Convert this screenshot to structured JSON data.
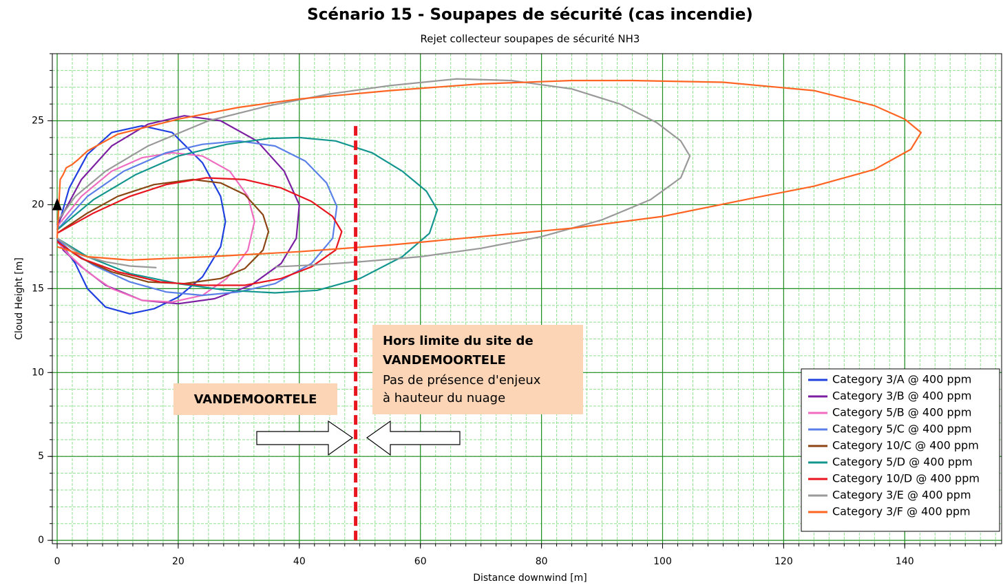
{
  "chart_data": {
    "type": "line",
    "title": "Scénario 15 - Soupapes de sécurité (cas incendie)",
    "subtitle": "Rejet collecteur soupapes de sécurité NH3",
    "x_label": "Distance downwind [m]",
    "y_label": "Cloud Height [m]",
    "xlim": [
      -0.8,
      156
    ],
    "ylim": [
      -0.2,
      29
    ],
    "xticks": [
      0,
      20,
      40,
      60,
      80,
      100,
      120,
      140
    ],
    "yticks": [
      0,
      5,
      10,
      15,
      20,
      25
    ],
    "grid": true,
    "minor_grid": {
      "x": 2.5,
      "y": 1
    },
    "legend": "lower right",
    "source": {
      "x": 0,
      "y": 20
    },
    "site_limit": {
      "x": 49.3,
      "ylim": [
        0,
        24.7
      ],
      "color": "#e8141e"
    },
    "annotation_inside": "VANDEMOORTELE",
    "annotation_outside": {
      "title": [
        "Hors limite du site de",
        "VANDEMOORTELE"
      ],
      "text": [
        "Pas de présence d'enjeux",
        "à hauteur du nuage"
      ]
    },
    "series": [
      {
        "name": "Category 3/A @ 400 ppm",
        "color": "#1f3fe0",
        "x": [
          0,
          2,
          5,
          9,
          14,
          19,
          24,
          27,
          27.8,
          27,
          24,
          20,
          16,
          12,
          8,
          5,
          3,
          1,
          0
        ],
        "values": [
          18.5,
          21,
          23,
          24.3,
          24.7,
          24.3,
          22.5,
          20.5,
          19,
          17.5,
          15.7,
          14.5,
          13.8,
          13.5,
          13.9,
          15,
          16.5,
          17.5,
          18
        ]
      },
      {
        "name": "Category 3/B @ 400 ppm",
        "color": "#7b1fa2",
        "x": [
          0,
          4,
          9,
          15,
          21,
          27,
          33,
          37.5,
          40,
          39.5,
          37,
          32,
          26,
          20,
          14,
          8,
          4,
          1,
          0
        ],
        "values": [
          18.8,
          21.5,
          23.5,
          24.8,
          25.3,
          25,
          23.8,
          22,
          20,
          18,
          16.5,
          15.2,
          14.4,
          14.1,
          14.3,
          15.2,
          16.3,
          17.3,
          18
        ]
      },
      {
        "name": "Category 5/B @ 400 ppm",
        "color": "#f06cc0",
        "x": [
          0,
          4,
          9,
          14,
          19,
          24,
          28.5,
          31.5,
          32.6,
          31.5,
          28,
          24,
          19,
          14,
          9,
          5,
          2,
          0
        ],
        "values": [
          18.7,
          20.5,
          22,
          22.8,
          23.1,
          22.9,
          22,
          20.5,
          19,
          17.3,
          15.6,
          14.6,
          14.2,
          14.3,
          15,
          16,
          17,
          17.8
        ]
      },
      {
        "name": "Category 5/C @ 400 ppm",
        "color": "#5b7fe8",
        "x": [
          0,
          5,
          11,
          18,
          24,
          30,
          36,
          41,
          44.5,
          46.2,
          45.5,
          42,
          36,
          30,
          24,
          18,
          12,
          6,
          2,
          0
        ],
        "values": [
          18.5,
          20.5,
          22,
          23.1,
          23.6,
          23.8,
          23.5,
          22.6,
          21.3,
          19.9,
          18,
          16.5,
          15.3,
          14.8,
          14.6,
          14.8,
          15.4,
          16.4,
          17.3,
          18
        ]
      },
      {
        "name": "Category 10/C @ 400 ppm",
        "color": "#8b4513",
        "x": [
          0,
          5,
          10,
          16,
          22.4,
          27,
          31,
          34,
          34.9,
          34,
          31,
          27,
          21,
          15,
          9,
          4,
          0
        ],
        "values": [
          18.3,
          19.5,
          20.5,
          21.2,
          21.5,
          21.3,
          20.6,
          19.4,
          18.4,
          17.3,
          16.2,
          15.6,
          15.3,
          15.4,
          16,
          16.8,
          17.8
        ]
      },
      {
        "name": "Category 5/D @ 400 ppm",
        "color": "#12958f",
        "x": [
          0,
          6,
          13,
          20,
          28,
          35,
          40,
          46,
          52,
          57,
          61,
          62.8,
          61.5,
          57,
          50,
          43,
          36,
          28,
          20,
          12,
          5,
          0
        ],
        "values": [
          18.5,
          20.3,
          21.8,
          22.9,
          23.6,
          23.95,
          24,
          23.8,
          23.1,
          22,
          20.8,
          19.7,
          18.3,
          16.9,
          15.6,
          14.9,
          14.75,
          14.9,
          15.3,
          15.9,
          16.9,
          18
        ]
      },
      {
        "name": "Category 10/D @ 400 ppm",
        "color": "#e8141e",
        "x": [
          0,
          6,
          12,
          18,
          24.6,
          31,
          37,
          42,
          45.5,
          47,
          46,
          42,
          37,
          31,
          24,
          17,
          10,
          4,
          0
        ],
        "values": [
          18.3,
          19.5,
          20.5,
          21.2,
          21.6,
          21.5,
          21,
          20.2,
          19.3,
          18.4,
          17.3,
          16.3,
          15.6,
          15.2,
          15.2,
          15.4,
          16,
          16.8,
          17.8
        ]
      },
      {
        "name": "Category 3/E @ 400 ppm",
        "color": "#999999",
        "x": [
          0,
          3,
          8,
          15,
          25,
          35,
          45,
          55,
          66,
          75,
          85,
          93,
          99,
          103,
          104.5,
          103,
          98,
          90,
          80,
          70,
          60,
          50,
          42,
          36,
          null,
          0,
          4,
          8,
          12,
          16.4
        ],
        "values": [
          19,
          20.5,
          22,
          23.5,
          25,
          25.9,
          26.6,
          27.1,
          27.5,
          27.4,
          26.9,
          26,
          24.9,
          23.8,
          22.9,
          21.6,
          20.3,
          19.1,
          18.1,
          17.4,
          16.9,
          16.6,
          16.4,
          16.3,
          null,
          18,
          17,
          16.6,
          16.35,
          16.25
        ]
      },
      {
        "name": "Category 3/F @ 400 ppm",
        "color": "#ff6422",
        "x": [
          0,
          0.5,
          1,
          1.5,
          2.5,
          3.5,
          5,
          10,
          20,
          30,
          40,
          55,
          70,
          85,
          95,
          110,
          125,
          135,
          140,
          142.7,
          141,
          135,
          125,
          115,
          100,
          85,
          70,
          55,
          40,
          25,
          12,
          5,
          0
        ],
        "values": [
          18,
          21.5,
          21.8,
          22.2,
          22.4,
          22.7,
          23.2,
          24.2,
          25.1,
          25.8,
          26.3,
          26.8,
          27.2,
          27.4,
          27.4,
          27.3,
          26.8,
          25.9,
          25.1,
          24.3,
          23.3,
          22.1,
          21.1,
          20.4,
          19.3,
          18.6,
          18.1,
          17.6,
          17.2,
          16.9,
          16.7,
          16.9,
          17.5
        ]
      }
    ]
  }
}
